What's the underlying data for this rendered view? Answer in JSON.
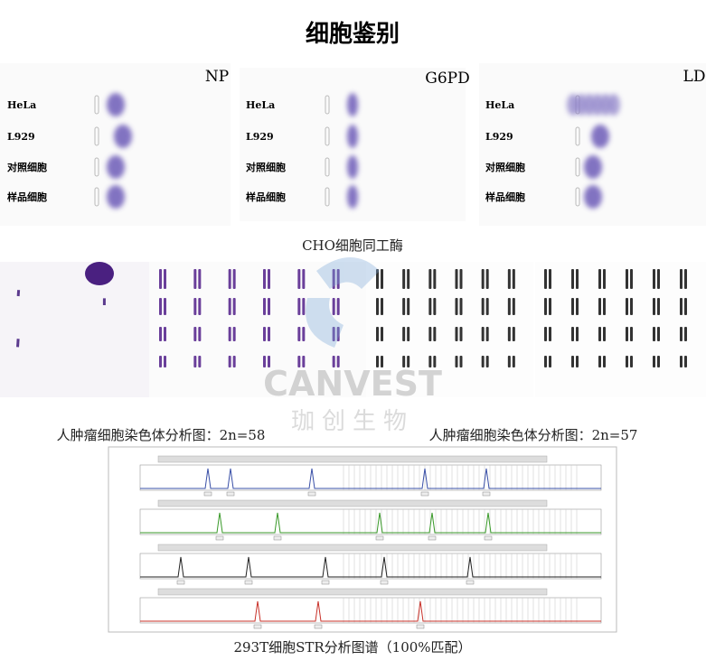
{
  "title": "细胞鉴别",
  "isoenzyme": {
    "panels": [
      {
        "label": "NP",
        "rows": [
          "HeLa",
          "L929",
          "对照细胞",
          "样品细胞"
        ]
      },
      {
        "label": "G6PD",
        "rows": [
          "HeLa",
          "L929",
          "对照细胞",
          "样品细胞"
        ]
      },
      {
        "label": "LD",
        "rows": [
          "HeLa",
          "L929",
          "对照细胞",
          "样品细胞"
        ]
      }
    ],
    "caption": "CHO细胞同工酶"
  },
  "karyotype": {
    "captions": [
      "人肿瘤细胞染色体分析图：2n=58",
      "人肿瘤细胞染色体分析图：2n=57"
    ]
  },
  "str": {
    "caption": "293T细胞STR分析图谱（100%匹配）"
  },
  "watermark": {
    "brand": "CANVEST",
    "name": "珈创生物"
  }
}
